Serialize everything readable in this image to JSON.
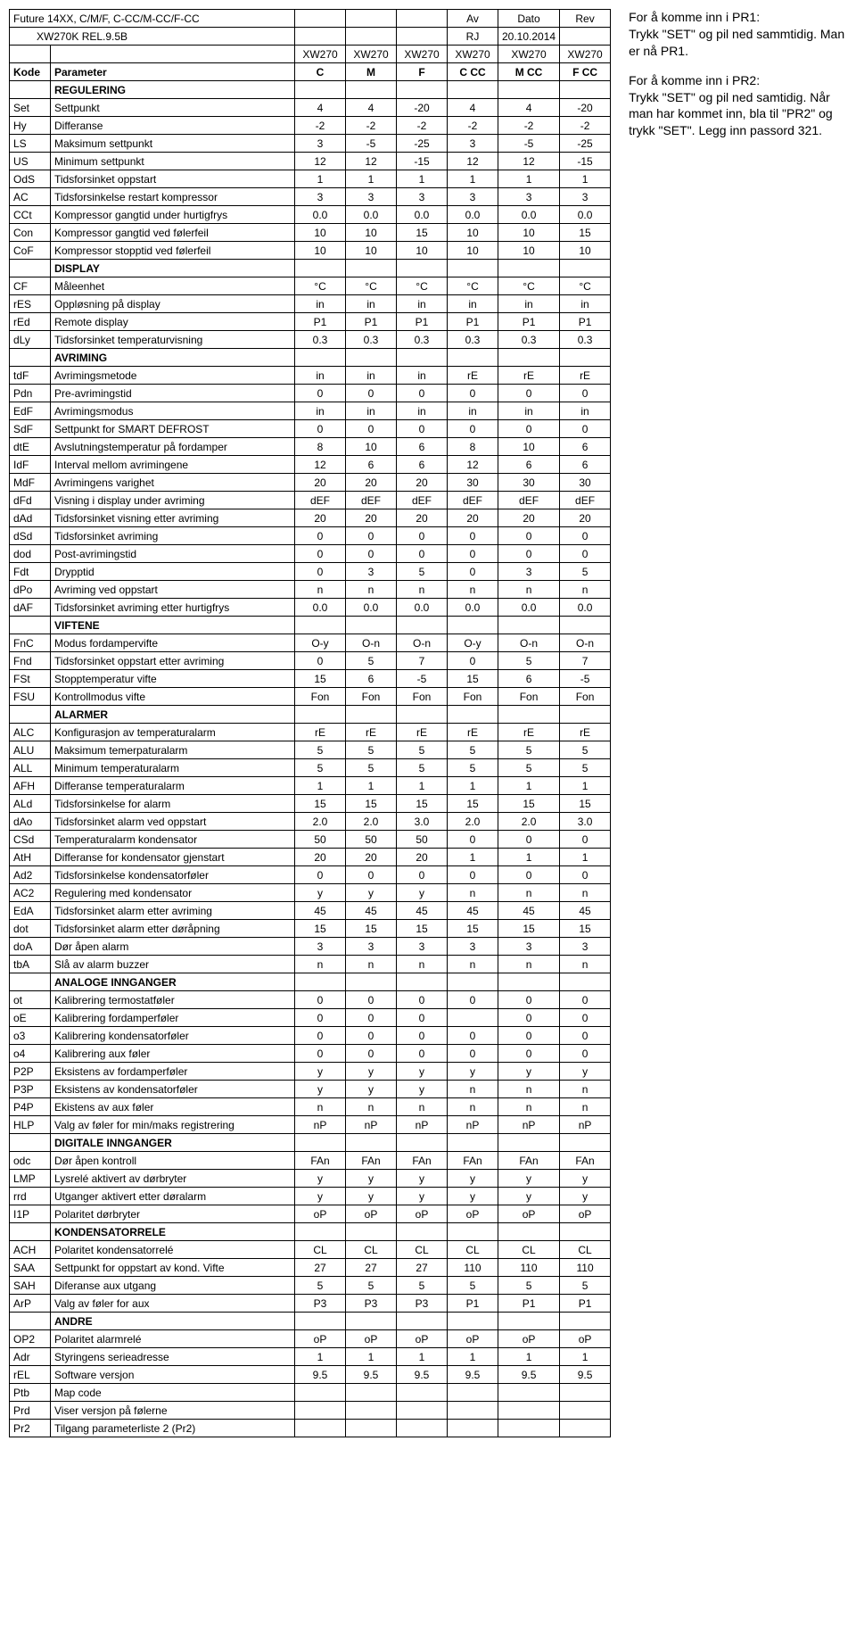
{
  "header": {
    "title_line1": "Future 14XX, C/M/F, C-CC/M-CC/F-CC",
    "title_line2": "XW270K REL.9.5B",
    "av": "Av",
    "dato_label": "Dato",
    "rev_label": "Rev",
    "rj": "RJ",
    "dato": "20.10.2014",
    "model_row": [
      "XW270",
      "XW270",
      "XW270",
      "XW270",
      "XW270",
      "XW270"
    ],
    "kode": "Kode",
    "parameter": "Parameter",
    "cols": [
      "C",
      "M",
      "F",
      "C CC",
      "M CC",
      "F CC"
    ]
  },
  "sidebar": {
    "p1": "For å komme inn i PR1:\nTrykk \"SET\" og pil ned sammtidig. Man er nå PR1.",
    "p2": "For å komme inn i PR2:\nTrykk \"SET\" og pil ned samtidig. Når man har kommet inn, bla til \"PR2\" og trykk \"SET\". Legg inn passord 321."
  },
  "sections": [
    {
      "section": "REGULERING",
      "rows": [
        {
          "c": "Set",
          "p": "Settpunkt",
          "v": [
            "4",
            "4",
            "-20",
            "4",
            "4",
            "-20"
          ]
        },
        {
          "c": "Hy",
          "p": "Differanse",
          "v": [
            "-2",
            "-2",
            "-2",
            "-2",
            "-2",
            "-2"
          ]
        },
        {
          "c": "LS",
          "p": "Maksimum settpunkt",
          "v": [
            "3",
            "-5",
            "-25",
            "3",
            "-5",
            "-25"
          ]
        },
        {
          "c": "US",
          "p": "Minimum settpunkt",
          "v": [
            "12",
            "12",
            "-15",
            "12",
            "12",
            "-15"
          ]
        },
        {
          "c": "OdS",
          "p": "Tidsforsinket oppstart",
          "v": [
            "1",
            "1",
            "1",
            "1",
            "1",
            "1"
          ]
        },
        {
          "c": "AC",
          "p": "Tidsforsinkelse restart kompressor",
          "v": [
            "3",
            "3",
            "3",
            "3",
            "3",
            "3"
          ]
        },
        {
          "c": "CCt",
          "p": "Kompressor gangtid under hurtigfrys",
          "v": [
            "0.0",
            "0.0",
            "0.0",
            "0.0",
            "0.0",
            "0.0"
          ]
        },
        {
          "c": "Con",
          "p": "Kompressor gangtid ved følerfeil",
          "v": [
            "10",
            "10",
            "15",
            "10",
            "10",
            "15"
          ]
        },
        {
          "c": "CoF",
          "p": "Kompressor stopptid ved følerfeil",
          "v": [
            "10",
            "10",
            "10",
            "10",
            "10",
            "10"
          ]
        }
      ]
    },
    {
      "section": "DISPLAY",
      "rows": [
        {
          "c": "CF",
          "p": "Måleenhet",
          "v": [
            "°C",
            "°C",
            "°C",
            "°C",
            "°C",
            "°C"
          ]
        },
        {
          "c": "rES",
          "p": "Oppløsning på display",
          "v": [
            "in",
            "in",
            "in",
            "in",
            "in",
            "in"
          ]
        },
        {
          "c": "rEd",
          "p": "Remote display",
          "v": [
            "P1",
            "P1",
            "P1",
            "P1",
            "P1",
            "P1"
          ]
        },
        {
          "c": "dLy",
          "p": "Tidsforsinket temperaturvisning",
          "v": [
            "0.3",
            "0.3",
            "0.3",
            "0.3",
            "0.3",
            "0.3"
          ]
        }
      ]
    },
    {
      "section": "AVRIMING",
      "rows": [
        {
          "c": "tdF",
          "p": "Avrimingsmetode",
          "v": [
            "in",
            "in",
            "in",
            "rE",
            "rE",
            "rE"
          ]
        },
        {
          "c": "Pdn",
          "p": "Pre-avrimingstid",
          "v": [
            "0",
            "0",
            "0",
            "0",
            "0",
            "0"
          ]
        },
        {
          "c": "EdF",
          "p": "Avrimingsmodus",
          "v": [
            "in",
            "in",
            "in",
            "in",
            "in",
            "in"
          ]
        },
        {
          "c": "SdF",
          "p": "Settpunkt for SMART DEFROST",
          "v": [
            "0",
            "0",
            "0",
            "0",
            "0",
            "0"
          ]
        },
        {
          "c": "dtE",
          "p": "Avslutningstemperatur på fordamper",
          "v": [
            "8",
            "10",
            "6",
            "8",
            "10",
            "6"
          ]
        },
        {
          "c": "IdF",
          "p": "Interval mellom avrimingene",
          "v": [
            "12",
            "6",
            "6",
            "12",
            "6",
            "6"
          ]
        },
        {
          "c": "MdF",
          "p": "Avrimingens varighet",
          "v": [
            "20",
            "20",
            "20",
            "30",
            "30",
            "30"
          ]
        },
        {
          "c": "dFd",
          "p": "Visning i display under avriming",
          "v": [
            "dEF",
            "dEF",
            "dEF",
            "dEF",
            "dEF",
            "dEF"
          ]
        },
        {
          "c": "dAd",
          "p": "Tidsforsinket visning etter avriming",
          "v": [
            "20",
            "20",
            "20",
            "20",
            "20",
            "20"
          ]
        },
        {
          "c": "dSd",
          "p": "Tidsforsinket avriming",
          "v": [
            "0",
            "0",
            "0",
            "0",
            "0",
            "0"
          ]
        },
        {
          "c": "dod",
          "p": "Post-avrimingstid",
          "v": [
            "0",
            "0",
            "0",
            "0",
            "0",
            "0"
          ]
        },
        {
          "c": "Fdt",
          "p": "Drypptid",
          "v": [
            "0",
            "3",
            "5",
            "0",
            "3",
            "5"
          ]
        },
        {
          "c": "dPo",
          "p": "Avriming ved oppstart",
          "v": [
            "n",
            "n",
            "n",
            "n",
            "n",
            "n"
          ]
        },
        {
          "c": "dAF",
          "p": "Tidsforsinket avriming etter hurtigfrys",
          "v": [
            "0.0",
            "0.0",
            "0.0",
            "0.0",
            "0.0",
            "0.0"
          ]
        }
      ]
    },
    {
      "section": "VIFTENE",
      "rows": [
        {
          "c": "FnC",
          "p": "Modus fordampervifte",
          "v": [
            "O-y",
            "O-n",
            "O-n",
            "O-y",
            "O-n",
            "O-n"
          ]
        },
        {
          "c": "Fnd",
          "p": "Tidsforsinket oppstart etter avriming",
          "v": [
            "0",
            "5",
            "7",
            "0",
            "5",
            "7"
          ]
        },
        {
          "c": "FSt",
          "p": "Stopptemperatur vifte",
          "v": [
            "15",
            "6",
            "-5",
            "15",
            "6",
            "-5"
          ]
        },
        {
          "c": "FSU",
          "p": "Kontrollmodus vifte",
          "v": [
            "Fon",
            "Fon",
            "Fon",
            "Fon",
            "Fon",
            "Fon"
          ]
        }
      ]
    },
    {
      "section": "ALARMER",
      "rows": [
        {
          "c": "ALC",
          "p": "Konfigurasjon av temperaturalarm",
          "v": [
            "rE",
            "rE",
            "rE",
            "rE",
            "rE",
            "rE"
          ]
        },
        {
          "c": "ALU",
          "p": "Maksimum temerpaturalarm",
          "v": [
            "5",
            "5",
            "5",
            "5",
            "5",
            "5"
          ]
        },
        {
          "c": "ALL",
          "p": "Minimum temperaturalarm",
          "v": [
            "5",
            "5",
            "5",
            "5",
            "5",
            "5"
          ]
        },
        {
          "c": "AFH",
          "p": "Differanse temperaturalarm",
          "v": [
            "1",
            "1",
            "1",
            "1",
            "1",
            "1"
          ]
        },
        {
          "c": "ALd",
          "p": "Tidsforsinkelse for alarm",
          "v": [
            "15",
            "15",
            "15",
            "15",
            "15",
            "15"
          ]
        },
        {
          "c": "dAo",
          "p": "Tidsforsinket alarm ved oppstart",
          "v": [
            "2.0",
            "2.0",
            "3.0",
            "2.0",
            "2.0",
            "3.0"
          ]
        },
        {
          "c": "CSd",
          "p": "Temperaturalarm kondensator",
          "v": [
            "50",
            "50",
            "50",
            "0",
            "0",
            "0"
          ]
        },
        {
          "c": "AtH",
          "p": "Differanse for kondensator gjenstart",
          "v": [
            "20",
            "20",
            "20",
            "1",
            "1",
            "1"
          ]
        },
        {
          "c": "Ad2",
          "p": "Tidsforsinkelse kondensatorføler",
          "v": [
            "0",
            "0",
            "0",
            "0",
            "0",
            "0"
          ]
        },
        {
          "c": "AC2",
          "p": "Regulering med kondensator",
          "v": [
            "y",
            "y",
            "y",
            "n",
            "n",
            "n"
          ]
        },
        {
          "c": "EdA",
          "p": "Tidsforsinket alarm etter avriming",
          "v": [
            "45",
            "45",
            "45",
            "45",
            "45",
            "45"
          ]
        },
        {
          "c": "dot",
          "p": "Tidsforsinket alarm etter døråpning",
          "v": [
            "15",
            "15",
            "15",
            "15",
            "15",
            "15"
          ]
        },
        {
          "c": "doA",
          "p": "Dør åpen alarm",
          "v": [
            "3",
            "3",
            "3",
            "3",
            "3",
            "3"
          ]
        },
        {
          "c": "tbA",
          "p": "Slå av alarm buzzer",
          "v": [
            "n",
            "n",
            "n",
            "n",
            "n",
            "n"
          ]
        }
      ]
    },
    {
      "section": "ANALOGE INNGANGER",
      "rows": [
        {
          "c": "ot",
          "p": "Kalibrering termostatføler",
          "v": [
            "0",
            "0",
            "0",
            "0",
            "0",
            "0"
          ]
        },
        {
          "c": "oE",
          "p": "Kalibrering fordamperføler",
          "v": [
            "0",
            "0",
            "0",
            "",
            "0",
            "0"
          ]
        },
        {
          "c": "o3",
          "p": "Kalibrering kondensatorføler",
          "v": [
            "0",
            "0",
            "0",
            "0",
            "0",
            "0"
          ]
        },
        {
          "c": "o4",
          "p": "Kalibrering aux føler",
          "v": [
            "0",
            "0",
            "0",
            "0",
            "0",
            "0"
          ]
        },
        {
          "c": "P2P",
          "p": "Eksistens av fordamperføler",
          "v": [
            "y",
            "y",
            "y",
            "y",
            "y",
            "y"
          ]
        },
        {
          "c": "P3P",
          "p": "Eksistens av kondensatorføler",
          "v": [
            "y",
            "y",
            "y",
            "n",
            "n",
            "n"
          ]
        },
        {
          "c": "P4P",
          "p": "Ekistens av aux føler",
          "v": [
            "n",
            "n",
            "n",
            "n",
            "n",
            "n"
          ]
        },
        {
          "c": "HLP",
          "p": "Valg av føler for min/maks registrering",
          "v": [
            "nP",
            "nP",
            "nP",
            "nP",
            "nP",
            "nP"
          ]
        }
      ]
    },
    {
      "section": "DIGITALE INNGANGER",
      "rows": [
        {
          "c": "odc",
          "p": "Dør åpen kontroll",
          "v": [
            "FAn",
            "FAn",
            "FAn",
            "FAn",
            "FAn",
            "FAn"
          ]
        },
        {
          "c": "LMP",
          "p": "Lysrelé aktivert av dørbryter",
          "v": [
            "y",
            "y",
            "y",
            "y",
            "y",
            "y"
          ]
        },
        {
          "c": "rrd",
          "p": "Utganger aktivert etter døralarm",
          "v": [
            "y",
            "y",
            "y",
            "y",
            "y",
            "y"
          ]
        },
        {
          "c": "I1P",
          "p": "Polaritet dørbryter",
          "v": [
            "oP",
            "oP",
            "oP",
            "oP",
            "oP",
            "oP"
          ]
        }
      ]
    },
    {
      "section": "KONDENSATORRELE",
      "rows": [
        {
          "c": "ACH",
          "p": "Polaritet kondensatorrelé",
          "v": [
            "CL",
            "CL",
            "CL",
            "CL",
            "CL",
            "CL"
          ]
        },
        {
          "c": "SAA",
          "p": "Settpunkt for oppstart av kond. Vifte",
          "v": [
            "27",
            "27",
            "27",
            "110",
            "110",
            "110"
          ]
        },
        {
          "c": "SAH",
          "p": "Diferanse aux utgang",
          "v": [
            "5",
            "5",
            "5",
            "5",
            "5",
            "5"
          ]
        },
        {
          "c": "ArP",
          "p": "Valg av føler for aux",
          "v": [
            "P3",
            "P3",
            "P3",
            "P1",
            "P1",
            "P1"
          ]
        }
      ]
    },
    {
      "section": "ANDRE",
      "rows": [
        {
          "c": "OP2",
          "p": "Polaritet alarmrelé",
          "v": [
            "oP",
            "oP",
            "oP",
            "oP",
            "oP",
            "oP"
          ]
        },
        {
          "c": "Adr",
          "p": "Styringens serieadresse",
          "v": [
            "1",
            "1",
            "1",
            "1",
            "1",
            "1"
          ]
        },
        {
          "c": "rEL",
          "p": "Software versjon",
          "v": [
            "9.5",
            "9.5",
            "9.5",
            "9.5",
            "9.5",
            "9.5"
          ]
        },
        {
          "c": "Ptb",
          "p": "Map code",
          "v": [
            "",
            "",
            "",
            "",
            "",
            ""
          ]
        },
        {
          "c": "Prd",
          "p": "Viser versjon på følerne",
          "v": [
            "",
            "",
            "",
            "",
            "",
            ""
          ]
        },
        {
          "c": "Pr2",
          "p": "Tilgang parameterliste 2 (Pr2)",
          "v": [
            "",
            "",
            "",
            "",
            "",
            ""
          ]
        }
      ]
    }
  ]
}
